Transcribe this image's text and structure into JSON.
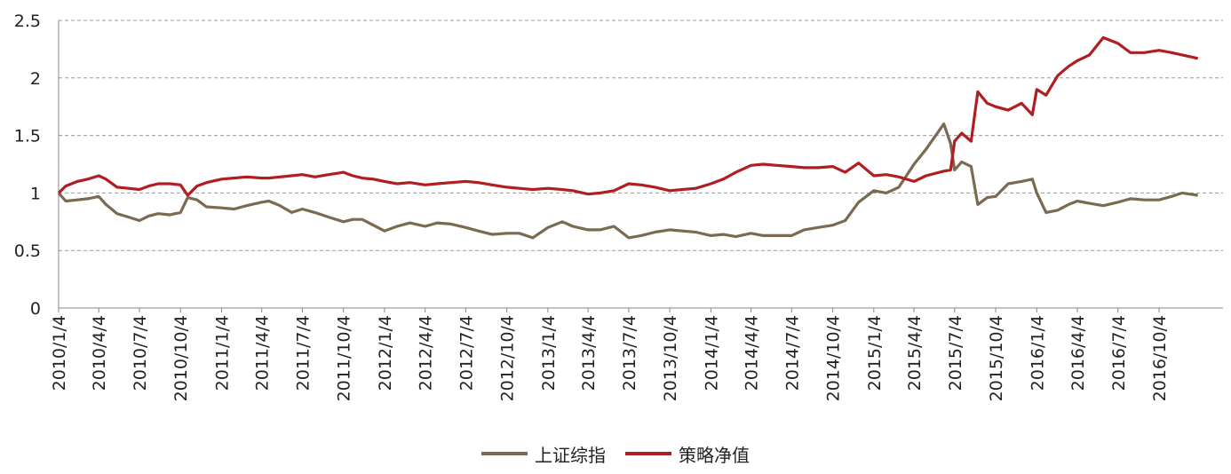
{
  "chart_data": {
    "type": "line",
    "title": "",
    "xlabel": "",
    "ylabel": "",
    "ylim": [
      0,
      2.5
    ],
    "yticks": [
      "0",
      "0.5",
      "1",
      "1.5",
      "2",
      "2.5"
    ],
    "xticks": [
      "2010/1/4",
      "2010/4/4",
      "2010/7/4",
      "2010/10/4",
      "2011/1/4",
      "2011/4/4",
      "2011/7/4",
      "2011/10/4",
      "2012/1/4",
      "2012/4/4",
      "2012/7/4",
      "2012/10/4",
      "2013/1/4",
      "2013/4/4",
      "2013/7/4",
      "2013/10/4",
      "2014/1/4",
      "2014/4/4",
      "2014/7/4",
      "2014/10/4",
      "2015/1/4",
      "2015/4/4",
      "2015/7/4",
      "2015/10/4",
      "2016/1/4",
      "2016/4/4",
      "2016/7/4",
      "2016/10/4"
    ],
    "grid": "horizontal dashed",
    "legend_position": "bottom",
    "series": [
      {
        "name": "上证综指",
        "color": "#7b6a52",
        "points": [
          [
            "2010/1/4",
            1.0
          ],
          [
            "2010/1/20",
            0.93
          ],
          [
            "2010/2/15",
            0.94
          ],
          [
            "2010/3/10",
            0.95
          ],
          [
            "2010/4/4",
            0.97
          ],
          [
            "2010/4/20",
            0.9
          ],
          [
            "2010/5/15",
            0.82
          ],
          [
            "2010/6/10",
            0.79
          ],
          [
            "2010/7/4",
            0.76
          ],
          [
            "2010/7/25",
            0.8
          ],
          [
            "2010/8/15",
            0.82
          ],
          [
            "2010/9/10",
            0.81
          ],
          [
            "2010/10/4",
            0.83
          ],
          [
            "2010/10/20",
            0.96
          ],
          [
            "2010/11/10",
            0.94
          ],
          [
            "2010/12/1",
            0.88
          ],
          [
            "2011/1/4",
            0.87
          ],
          [
            "2011/2/1",
            0.86
          ],
          [
            "2011/3/1",
            0.89
          ],
          [
            "2011/4/4",
            0.92
          ],
          [
            "2011/4/20",
            0.93
          ],
          [
            "2011/5/15",
            0.89
          ],
          [
            "2011/6/10",
            0.83
          ],
          [
            "2011/7/4",
            0.86
          ],
          [
            "2011/8/1",
            0.83
          ],
          [
            "2011/9/1",
            0.79
          ],
          [
            "2011/10/4",
            0.75
          ],
          [
            "2011/10/25",
            0.77
          ],
          [
            "2011/11/15",
            0.77
          ],
          [
            "2011/12/10",
            0.72
          ],
          [
            "2012/1/4",
            0.67
          ],
          [
            "2012/2/1",
            0.71
          ],
          [
            "2012/3/1",
            0.74
          ],
          [
            "2012/4/4",
            0.71
          ],
          [
            "2012/5/1",
            0.74
          ],
          [
            "2012/6/1",
            0.73
          ],
          [
            "2012/7/4",
            0.7
          ],
          [
            "2012/8/1",
            0.67
          ],
          [
            "2012/9/1",
            0.64
          ],
          [
            "2012/10/4",
            0.65
          ],
          [
            "2012/11/1",
            0.65
          ],
          [
            "2012/12/1",
            0.61
          ],
          [
            "2013/1/4",
            0.7
          ],
          [
            "2013/2/5",
            0.75
          ],
          [
            "2013/3/1",
            0.71
          ],
          [
            "2013/4/4",
            0.68
          ],
          [
            "2013/5/1",
            0.68
          ],
          [
            "2013/6/1",
            0.71
          ],
          [
            "2013/7/4",
            0.61
          ],
          [
            "2013/8/1",
            0.63
          ],
          [
            "2013/9/1",
            0.66
          ],
          [
            "2013/10/4",
            0.68
          ],
          [
            "2013/11/1",
            0.67
          ],
          [
            "2013/12/1",
            0.66
          ],
          [
            "2014/1/4",
            0.63
          ],
          [
            "2014/2/1",
            0.64
          ],
          [
            "2014/3/1",
            0.62
          ],
          [
            "2014/4/4",
            0.65
          ],
          [
            "2014/5/1",
            0.63
          ],
          [
            "2014/6/1",
            0.63
          ],
          [
            "2014/7/4",
            0.63
          ],
          [
            "2014/8/1",
            0.68
          ],
          [
            "2014/9/1",
            0.7
          ],
          [
            "2014/10/4",
            0.72
          ],
          [
            "2014/11/1",
            0.76
          ],
          [
            "2014/12/1",
            0.92
          ],
          [
            "2015/1/4",
            1.02
          ],
          [
            "2015/2/1",
            1.0
          ],
          [
            "2015/3/1",
            1.05
          ],
          [
            "2015/4/4",
            1.25
          ],
          [
            "2015/5/1",
            1.38
          ],
          [
            "2015/6/10",
            1.6
          ],
          [
            "2015/6/25",
            1.43
          ],
          [
            "2015/7/4",
            1.2
          ],
          [
            "2015/7/20",
            1.27
          ],
          [
            "2015/8/10",
            1.23
          ],
          [
            "2015/8/25",
            0.9
          ],
          [
            "2015/9/15",
            0.96
          ],
          [
            "2015/10/4",
            0.97
          ],
          [
            "2015/11/1",
            1.08
          ],
          [
            "2015/12/1",
            1.1
          ],
          [
            "2015/12/25",
            1.12
          ],
          [
            "2016/1/4",
            1.0
          ],
          [
            "2016/1/25",
            0.83
          ],
          [
            "2016/2/20",
            0.85
          ],
          [
            "2016/3/15",
            0.9
          ],
          [
            "2016/4/4",
            0.93
          ],
          [
            "2016/5/1",
            0.91
          ],
          [
            "2016/6/1",
            0.89
          ],
          [
            "2016/7/4",
            0.92
          ],
          [
            "2016/8/1",
            0.95
          ],
          [
            "2016/9/1",
            0.94
          ],
          [
            "2016/10/4",
            0.94
          ],
          [
            "2016/11/1",
            0.97
          ],
          [
            "2016/11/25",
            1.0
          ],
          [
            "2016/12/30",
            0.98
          ]
        ]
      },
      {
        "name": "策略净值",
        "color": "#b01e22",
        "points": [
          [
            "2010/1/4",
            1.0
          ],
          [
            "2010/1/20",
            1.06
          ],
          [
            "2010/2/15",
            1.1
          ],
          [
            "2010/3/10",
            1.12
          ],
          [
            "2010/4/4",
            1.15
          ],
          [
            "2010/4/20",
            1.12
          ],
          [
            "2010/5/15",
            1.05
          ],
          [
            "2010/6/10",
            1.04
          ],
          [
            "2010/7/4",
            1.03
          ],
          [
            "2010/7/25",
            1.06
          ],
          [
            "2010/8/15",
            1.08
          ],
          [
            "2010/9/10",
            1.08
          ],
          [
            "2010/10/4",
            1.07
          ],
          [
            "2010/10/20",
            0.98
          ],
          [
            "2010/11/10",
            1.06
          ],
          [
            "2010/12/1",
            1.09
          ],
          [
            "2011/1/4",
            1.12
          ],
          [
            "2011/2/1",
            1.13
          ],
          [
            "2011/3/1",
            1.14
          ],
          [
            "2011/4/4",
            1.13
          ],
          [
            "2011/4/20",
            1.13
          ],
          [
            "2011/5/15",
            1.14
          ],
          [
            "2011/6/10",
            1.15
          ],
          [
            "2011/7/4",
            1.16
          ],
          [
            "2011/8/1",
            1.14
          ],
          [
            "2011/9/1",
            1.16
          ],
          [
            "2011/10/4",
            1.18
          ],
          [
            "2011/10/25",
            1.15
          ],
          [
            "2011/11/15",
            1.13
          ],
          [
            "2011/12/10",
            1.12
          ],
          [
            "2012/1/4",
            1.1
          ],
          [
            "2012/2/1",
            1.08
          ],
          [
            "2012/3/1",
            1.09
          ],
          [
            "2012/4/4",
            1.07
          ],
          [
            "2012/5/1",
            1.08
          ],
          [
            "2012/6/1",
            1.09
          ],
          [
            "2012/7/4",
            1.1
          ],
          [
            "2012/8/1",
            1.09
          ],
          [
            "2012/9/1",
            1.07
          ],
          [
            "2012/10/4",
            1.05
          ],
          [
            "2012/11/1",
            1.04
          ],
          [
            "2012/12/1",
            1.03
          ],
          [
            "2013/1/4",
            1.04
          ],
          [
            "2013/2/5",
            1.03
          ],
          [
            "2013/3/1",
            1.02
          ],
          [
            "2013/4/4",
            0.99
          ],
          [
            "2013/5/1",
            1.0
          ],
          [
            "2013/6/1",
            1.02
          ],
          [
            "2013/7/4",
            1.08
          ],
          [
            "2013/8/1",
            1.07
          ],
          [
            "2013/9/1",
            1.05
          ],
          [
            "2013/10/4",
            1.02
          ],
          [
            "2013/11/1",
            1.03
          ],
          [
            "2013/12/1",
            1.04
          ],
          [
            "2014/1/4",
            1.08
          ],
          [
            "2014/2/1",
            1.12
          ],
          [
            "2014/3/1",
            1.18
          ],
          [
            "2014/4/4",
            1.24
          ],
          [
            "2014/5/1",
            1.25
          ],
          [
            "2014/6/1",
            1.24
          ],
          [
            "2014/7/4",
            1.23
          ],
          [
            "2014/8/1",
            1.22
          ],
          [
            "2014/9/1",
            1.22
          ],
          [
            "2014/10/4",
            1.23
          ],
          [
            "2014/11/1",
            1.18
          ],
          [
            "2014/12/1",
            1.26
          ],
          [
            "2015/1/4",
            1.15
          ],
          [
            "2015/2/1",
            1.16
          ],
          [
            "2015/3/1",
            1.14
          ],
          [
            "2015/4/4",
            1.1
          ],
          [
            "2015/5/1",
            1.15
          ],
          [
            "2015/6/10",
            1.19
          ],
          [
            "2015/6/25",
            1.2
          ],
          [
            "2015/7/4",
            1.45
          ],
          [
            "2015/7/20",
            1.52
          ],
          [
            "2015/8/10",
            1.45
          ],
          [
            "2015/8/25",
            1.88
          ],
          [
            "2015/9/15",
            1.78
          ],
          [
            "2015/10/4",
            1.75
          ],
          [
            "2015/11/1",
            1.72
          ],
          [
            "2015/12/1",
            1.78
          ],
          [
            "2015/12/25",
            1.68
          ],
          [
            "2016/1/4",
            1.9
          ],
          [
            "2016/1/25",
            1.85
          ],
          [
            "2016/2/20",
            2.02
          ],
          [
            "2016/3/15",
            2.1
          ],
          [
            "2016/4/4",
            2.15
          ],
          [
            "2016/5/1",
            2.2
          ],
          [
            "2016/6/1",
            2.35
          ],
          [
            "2016/7/4",
            2.3
          ],
          [
            "2016/8/1",
            2.22
          ],
          [
            "2016/9/1",
            2.22
          ],
          [
            "2016/10/4",
            2.24
          ],
          [
            "2016/11/1",
            2.22
          ],
          [
            "2016/11/25",
            2.2
          ],
          [
            "2016/12/30",
            2.17
          ]
        ]
      }
    ]
  }
}
